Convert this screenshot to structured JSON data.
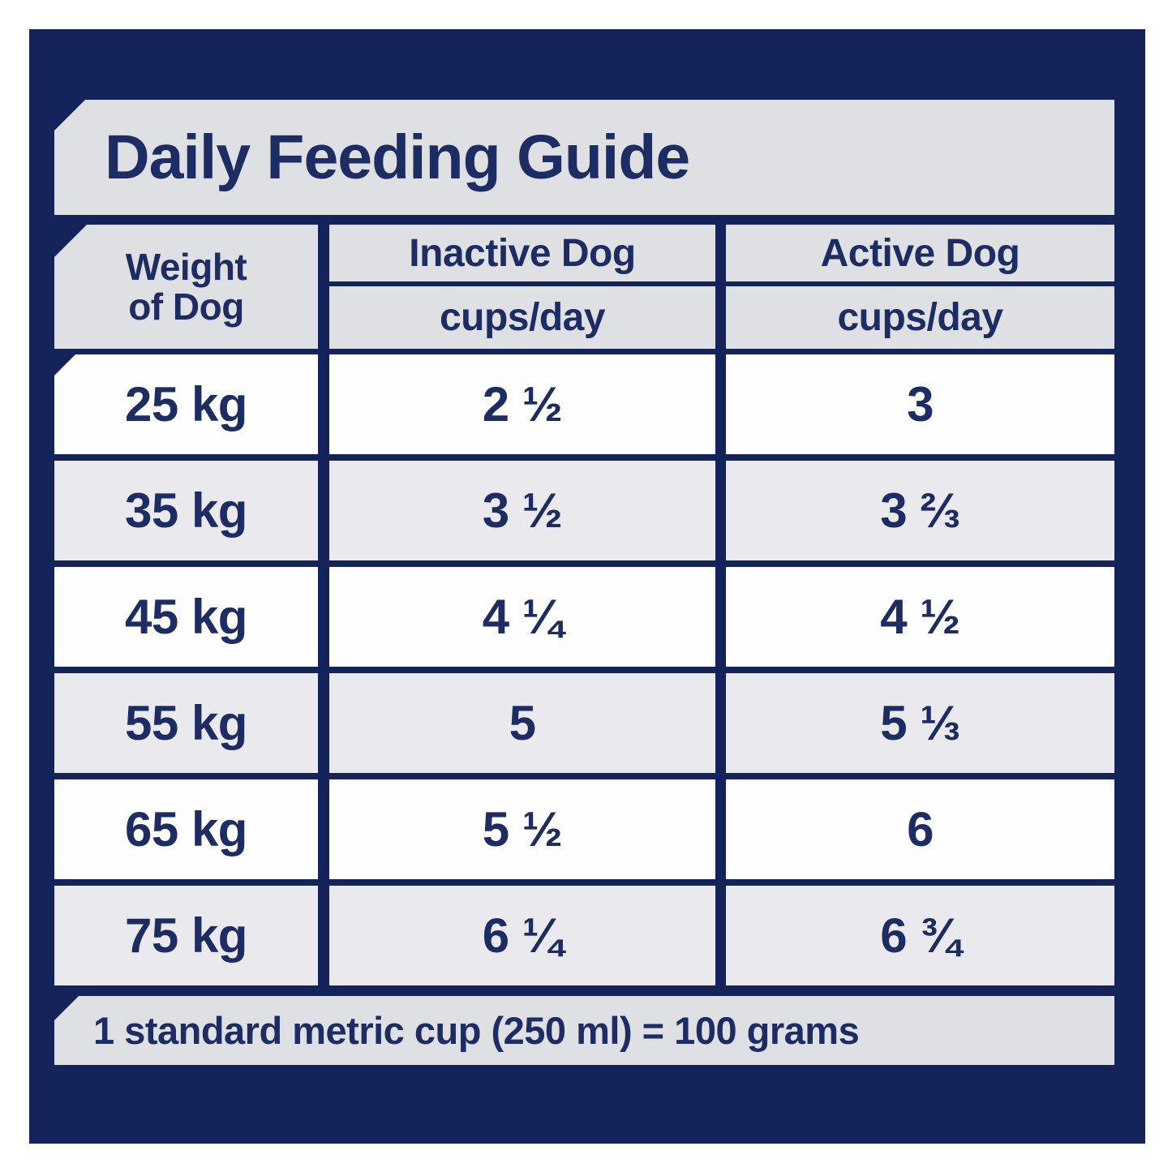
{
  "title": "Daily Feeding Guide",
  "header": {
    "weight_col_line1": "Weight",
    "weight_col_line2": "of Dog",
    "inactive_label": "Inactive Dog",
    "inactive_unit": "cups/day",
    "active_label": "Active Dog",
    "active_unit": "cups/day"
  },
  "rows": [
    {
      "weight": "25 kg",
      "inactive": "2 ½",
      "active": "3"
    },
    {
      "weight": "35 kg",
      "inactive": "3 ½",
      "active": "3 ⅔"
    },
    {
      "weight": "45 kg",
      "inactive": "4 ¼",
      "active": "4 ½"
    },
    {
      "weight": "55 kg",
      "inactive": "5",
      "active": "5 ⅓"
    },
    {
      "weight": "65 kg",
      "inactive": "5 ½",
      "active": "6"
    },
    {
      "weight": "75 kg",
      "inactive": "6 ¼",
      "active": "6 ¾"
    }
  ],
  "footer_note": "1 standard metric cup (250 ml) = 100 grams",
  "colors": {
    "panel_navy": "#14235a",
    "text_navy": "#1e2c64",
    "band_gray": "#dfe0e4",
    "row_gray": "#eaeaee",
    "row_white": "#fefefe"
  },
  "chart_data": {
    "type": "table",
    "title": "Daily Feeding Guide",
    "columns": [
      "Weight of Dog",
      "Inactive Dog (cups/day)",
      "Active Dog (cups/day)"
    ],
    "rows": [
      [
        "25 kg",
        "2 1/2",
        "3"
      ],
      [
        "35 kg",
        "3 1/2",
        "3 2/3"
      ],
      [
        "45 kg",
        "4 1/4",
        "4 1/2"
      ],
      [
        "55 kg",
        "5",
        "5 1/3"
      ],
      [
        "65 kg",
        "5 1/2",
        "6"
      ],
      [
        "75 kg",
        "6 1/4",
        "6 3/4"
      ]
    ],
    "note": "1 standard metric cup (250 ml) = 100 grams",
    "values_numeric": {
      "weights_kg": [
        25,
        35,
        45,
        55,
        65,
        75
      ],
      "inactive_cups_per_day": [
        2.5,
        3.5,
        4.25,
        5,
        5.5,
        6.25
      ],
      "active_cups_per_day": [
        3,
        3.67,
        4.5,
        5.33,
        6,
        6.75
      ]
    }
  }
}
